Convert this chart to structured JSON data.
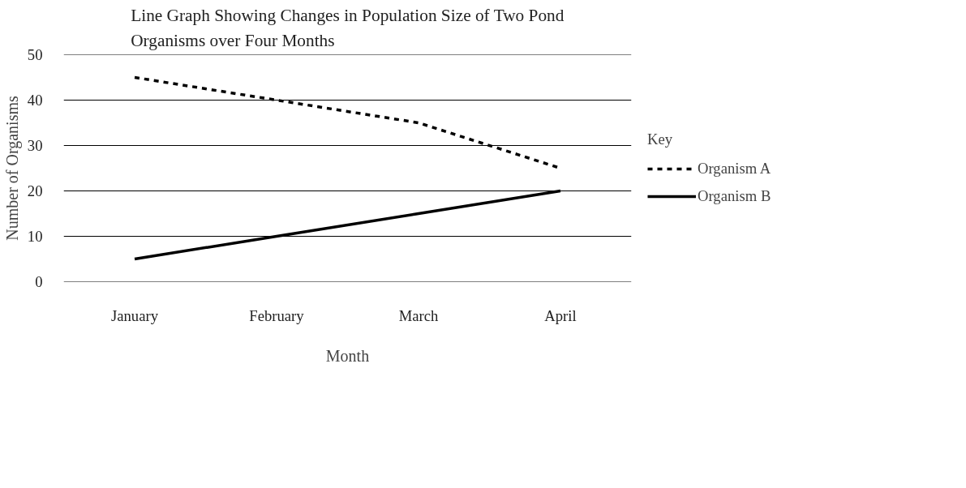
{
  "chart_data": {
    "type": "line",
    "title": "Line Graph Showing Changes in Population Size of Two Pond Organisms over Four Months",
    "xlabel": "Month",
    "ylabel": "Number of Organisms",
    "legend_title": "Key",
    "categories": [
      "January",
      "February",
      "March",
      "April"
    ],
    "series": [
      {
        "name": "Organism A",
        "color": "#000000",
        "line_style": "dashed",
        "values": [
          45,
          40,
          35,
          25
        ]
      },
      {
        "name": "Organism B",
        "color": "#000000",
        "line_style": "solid",
        "values": [
          5,
          10,
          15,
          20
        ]
      }
    ],
    "ylim": [
      0,
      50
    ],
    "yticks": [
      0,
      10,
      20,
      30,
      40,
      50
    ],
    "grid": "y",
    "legend": "right",
    "marker": "none"
  }
}
